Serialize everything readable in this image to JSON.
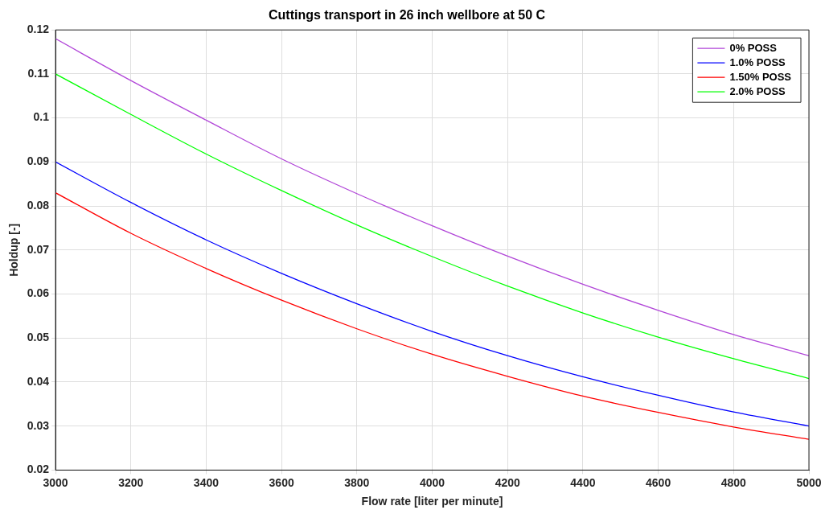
{
  "chart_data": {
    "type": "line",
    "title": "Cuttings transport in 26 inch wellbore at 50 C",
    "xlabel": "Flow rate [liter per minute]",
    "ylabel": "Holdup [-]",
    "x": [
      3000,
      3200,
      3400,
      3600,
      3800,
      4000,
      4200,
      4400,
      4600,
      4800,
      5000
    ],
    "series": [
      {
        "name": "0% POSS",
        "color": "#b146d8",
        "values": [
          0.118,
          0.1085,
          0.0995,
          0.0907,
          0.0828,
          0.0755,
          0.0686,
          0.0622,
          0.0563,
          0.0508,
          0.046
        ]
      },
      {
        "name": "1.0% POSS",
        "color": "#0000ff",
        "values": [
          0.09,
          0.0808,
          0.0723,
          0.0647,
          0.0578,
          0.0515,
          0.046,
          0.0412,
          0.037,
          0.0332,
          0.03
        ]
      },
      {
        "name": "1.50% POSS",
        "color": "#ff0000",
        "values": [
          0.083,
          0.0738,
          0.0658,
          0.0586,
          0.0521,
          0.0463,
          0.0413,
          0.0368,
          0.0331,
          0.0298,
          0.027
        ]
      },
      {
        "name": "2.0% POSS",
        "color": "#00ff00",
        "values": [
          0.11,
          0.1008,
          0.0918,
          0.0835,
          0.0757,
          0.0685,
          0.0618,
          0.0557,
          0.0502,
          0.0453,
          0.0408
        ]
      }
    ],
    "xlim": [
      3000,
      5000
    ],
    "xticks": [
      3000,
      3200,
      3400,
      3600,
      3800,
      4000,
      4200,
      4400,
      4600,
      4800,
      5000
    ],
    "ylim": [
      0.02,
      0.12
    ],
    "yticks": [
      0.02,
      0.03,
      0.04,
      0.05,
      0.06,
      0.07,
      0.08,
      0.09,
      0.1,
      0.11,
      0.12
    ],
    "grid": true,
    "legend": "top right",
    "marker": "none",
    "line_style": "solid"
  }
}
